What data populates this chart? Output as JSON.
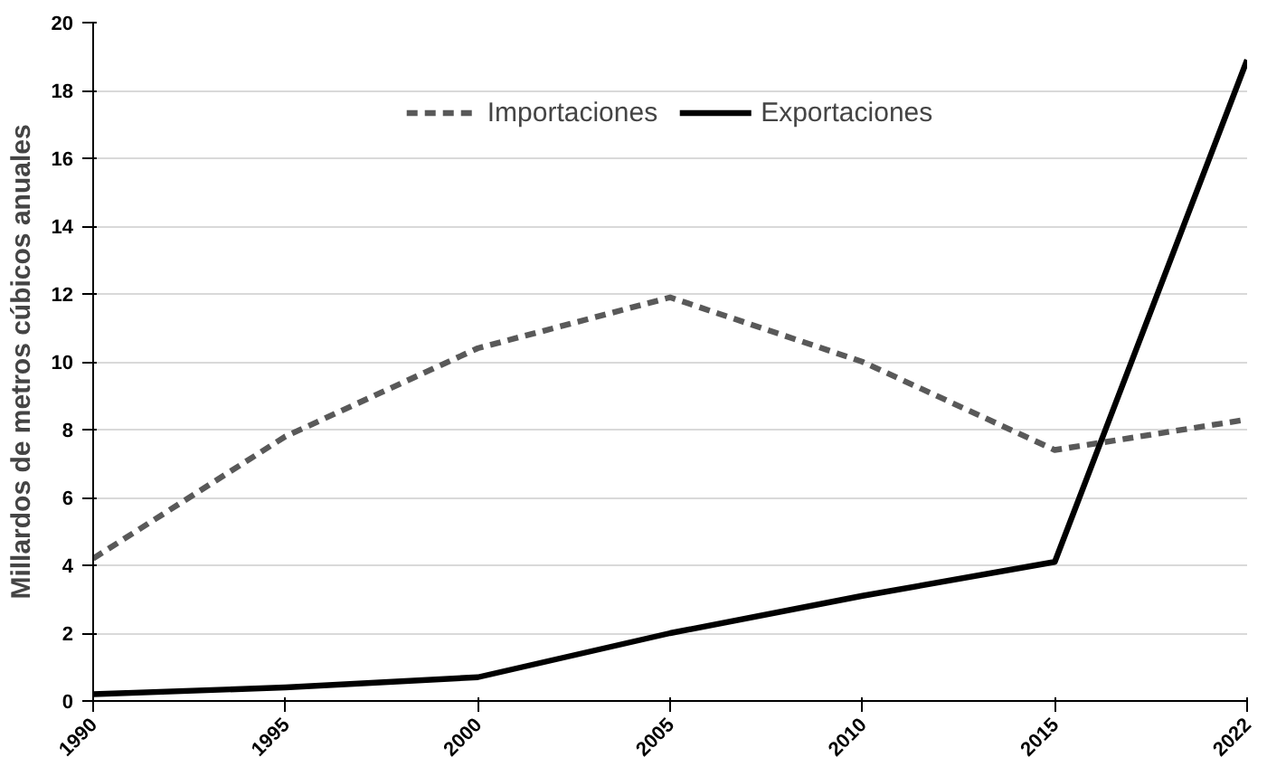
{
  "chart_data": {
    "type": "line",
    "ylabel": "Millardos de metros cúbicos anuales",
    "categories": [
      "1990",
      "1995",
      "2000",
      "2005",
      "2010",
      "2015",
      "2022"
    ],
    "series": [
      {
        "name": "Importaciones",
        "color": "#595959",
        "line_style": "dashed",
        "values": [
          4.2,
          7.8,
          10.4,
          11.9,
          10.0,
          7.4,
          8.3
        ]
      },
      {
        "name": "Exportaciones",
        "color": "#000000",
        "line_style": "solid",
        "values": [
          0.2,
          0.4,
          0.7,
          2.0,
          3.1,
          4.1,
          18.9
        ]
      }
    ],
    "ylim": [
      0,
      20
    ],
    "yticks": [
      0,
      2,
      4,
      6,
      8,
      10,
      12,
      14,
      16,
      18,
      20
    ],
    "grid": "y",
    "legend": "top",
    "marker": "none"
  }
}
